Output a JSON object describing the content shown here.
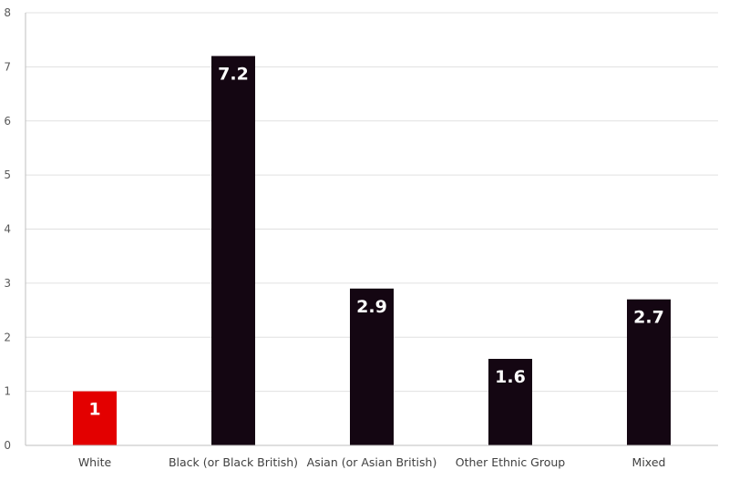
{
  "chart_data": {
    "type": "bar",
    "title": "",
    "xlabel": "",
    "ylabel": "",
    "categories": [
      "White",
      "Black (or Black British)",
      "Asian (or Asian British)",
      "Other Ethnic Group",
      "Mixed"
    ],
    "values": [
      1,
      7.2,
      2.9,
      1.6,
      2.7
    ],
    "data_labels": [
      "1",
      "7.2",
      "2.9",
      "1.6",
      "2.7"
    ],
    "ylim": [
      0,
      8
    ],
    "yticks": [
      0,
      1,
      2,
      3,
      4,
      5,
      6,
      7,
      8
    ],
    "grid": true,
    "legend": "none",
    "colors": {
      "highlight": "#e30000",
      "default": "#140612",
      "highlight_category": "White"
    }
  }
}
